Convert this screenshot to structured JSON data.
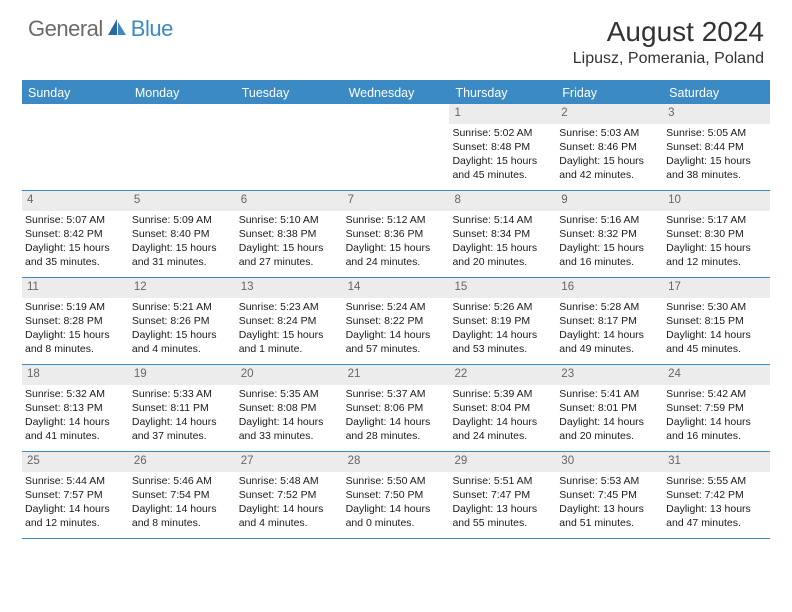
{
  "logo": {
    "part1": "General",
    "part2": "Blue"
  },
  "title": "August 2024",
  "location": "Lipusz, Pomerania, Poland",
  "colors": {
    "accent": "#3b8ac4",
    "header_bg": "#3b8ac4",
    "header_text": "#ffffff",
    "daynum_bg": "#ececec",
    "daynum_text": "#666666",
    "body_text": "#1a1a1a",
    "logo_gray": "#6b6b6b",
    "logo_blue": "#3b8ac4"
  },
  "day_headers": [
    "Sunday",
    "Monday",
    "Tuesday",
    "Wednesday",
    "Thursday",
    "Friday",
    "Saturday"
  ],
  "weeks": [
    [
      {
        "empty": true
      },
      {
        "empty": true
      },
      {
        "empty": true
      },
      {
        "empty": true
      },
      {
        "day": "1",
        "sunrise": "Sunrise: 5:02 AM",
        "sunset": "Sunset: 8:48 PM",
        "daylight": "Daylight: 15 hours and 45 minutes."
      },
      {
        "day": "2",
        "sunrise": "Sunrise: 5:03 AM",
        "sunset": "Sunset: 8:46 PM",
        "daylight": "Daylight: 15 hours and 42 minutes."
      },
      {
        "day": "3",
        "sunrise": "Sunrise: 5:05 AM",
        "sunset": "Sunset: 8:44 PM",
        "daylight": "Daylight: 15 hours and 38 minutes."
      }
    ],
    [
      {
        "day": "4",
        "sunrise": "Sunrise: 5:07 AM",
        "sunset": "Sunset: 8:42 PM",
        "daylight": "Daylight: 15 hours and 35 minutes."
      },
      {
        "day": "5",
        "sunrise": "Sunrise: 5:09 AM",
        "sunset": "Sunset: 8:40 PM",
        "daylight": "Daylight: 15 hours and 31 minutes."
      },
      {
        "day": "6",
        "sunrise": "Sunrise: 5:10 AM",
        "sunset": "Sunset: 8:38 PM",
        "daylight": "Daylight: 15 hours and 27 minutes."
      },
      {
        "day": "7",
        "sunrise": "Sunrise: 5:12 AM",
        "sunset": "Sunset: 8:36 PM",
        "daylight": "Daylight: 15 hours and 24 minutes."
      },
      {
        "day": "8",
        "sunrise": "Sunrise: 5:14 AM",
        "sunset": "Sunset: 8:34 PM",
        "daylight": "Daylight: 15 hours and 20 minutes."
      },
      {
        "day": "9",
        "sunrise": "Sunrise: 5:16 AM",
        "sunset": "Sunset: 8:32 PM",
        "daylight": "Daylight: 15 hours and 16 minutes."
      },
      {
        "day": "10",
        "sunrise": "Sunrise: 5:17 AM",
        "sunset": "Sunset: 8:30 PM",
        "daylight": "Daylight: 15 hours and 12 minutes."
      }
    ],
    [
      {
        "day": "11",
        "sunrise": "Sunrise: 5:19 AM",
        "sunset": "Sunset: 8:28 PM",
        "daylight": "Daylight: 15 hours and 8 minutes."
      },
      {
        "day": "12",
        "sunrise": "Sunrise: 5:21 AM",
        "sunset": "Sunset: 8:26 PM",
        "daylight": "Daylight: 15 hours and 4 minutes."
      },
      {
        "day": "13",
        "sunrise": "Sunrise: 5:23 AM",
        "sunset": "Sunset: 8:24 PM",
        "daylight": "Daylight: 15 hours and 1 minute."
      },
      {
        "day": "14",
        "sunrise": "Sunrise: 5:24 AM",
        "sunset": "Sunset: 8:22 PM",
        "daylight": "Daylight: 14 hours and 57 minutes."
      },
      {
        "day": "15",
        "sunrise": "Sunrise: 5:26 AM",
        "sunset": "Sunset: 8:19 PM",
        "daylight": "Daylight: 14 hours and 53 minutes."
      },
      {
        "day": "16",
        "sunrise": "Sunrise: 5:28 AM",
        "sunset": "Sunset: 8:17 PM",
        "daylight": "Daylight: 14 hours and 49 minutes."
      },
      {
        "day": "17",
        "sunrise": "Sunrise: 5:30 AM",
        "sunset": "Sunset: 8:15 PM",
        "daylight": "Daylight: 14 hours and 45 minutes."
      }
    ],
    [
      {
        "day": "18",
        "sunrise": "Sunrise: 5:32 AM",
        "sunset": "Sunset: 8:13 PM",
        "daylight": "Daylight: 14 hours and 41 minutes."
      },
      {
        "day": "19",
        "sunrise": "Sunrise: 5:33 AM",
        "sunset": "Sunset: 8:11 PM",
        "daylight": "Daylight: 14 hours and 37 minutes."
      },
      {
        "day": "20",
        "sunrise": "Sunrise: 5:35 AM",
        "sunset": "Sunset: 8:08 PM",
        "daylight": "Daylight: 14 hours and 33 minutes."
      },
      {
        "day": "21",
        "sunrise": "Sunrise: 5:37 AM",
        "sunset": "Sunset: 8:06 PM",
        "daylight": "Daylight: 14 hours and 28 minutes."
      },
      {
        "day": "22",
        "sunrise": "Sunrise: 5:39 AM",
        "sunset": "Sunset: 8:04 PM",
        "daylight": "Daylight: 14 hours and 24 minutes."
      },
      {
        "day": "23",
        "sunrise": "Sunrise: 5:41 AM",
        "sunset": "Sunset: 8:01 PM",
        "daylight": "Daylight: 14 hours and 20 minutes."
      },
      {
        "day": "24",
        "sunrise": "Sunrise: 5:42 AM",
        "sunset": "Sunset: 7:59 PM",
        "daylight": "Daylight: 14 hours and 16 minutes."
      }
    ],
    [
      {
        "day": "25",
        "sunrise": "Sunrise: 5:44 AM",
        "sunset": "Sunset: 7:57 PM",
        "daylight": "Daylight: 14 hours and 12 minutes."
      },
      {
        "day": "26",
        "sunrise": "Sunrise: 5:46 AM",
        "sunset": "Sunset: 7:54 PM",
        "daylight": "Daylight: 14 hours and 8 minutes."
      },
      {
        "day": "27",
        "sunrise": "Sunrise: 5:48 AM",
        "sunset": "Sunset: 7:52 PM",
        "daylight": "Daylight: 14 hours and 4 minutes."
      },
      {
        "day": "28",
        "sunrise": "Sunrise: 5:50 AM",
        "sunset": "Sunset: 7:50 PM",
        "daylight": "Daylight: 14 hours and 0 minutes."
      },
      {
        "day": "29",
        "sunrise": "Sunrise: 5:51 AM",
        "sunset": "Sunset: 7:47 PM",
        "daylight": "Daylight: 13 hours and 55 minutes."
      },
      {
        "day": "30",
        "sunrise": "Sunrise: 5:53 AM",
        "sunset": "Sunset: 7:45 PM",
        "daylight": "Daylight: 13 hours and 51 minutes."
      },
      {
        "day": "31",
        "sunrise": "Sunrise: 5:55 AM",
        "sunset": "Sunset: 7:42 PM",
        "daylight": "Daylight: 13 hours and 47 minutes."
      }
    ]
  ]
}
